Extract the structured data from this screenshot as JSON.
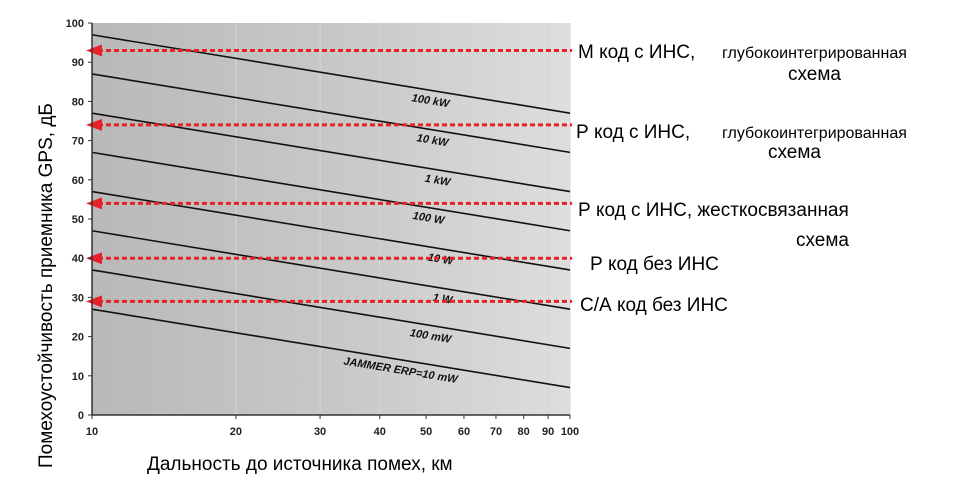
{
  "chart_data": {
    "type": "line",
    "xlabel": "Дальность до источника помех, км",
    "ylabel": "Помехоустойчивость приемника GPS, дБ",
    "x_scale": "log",
    "xlim": [
      10,
      100
    ],
    "ylim": [
      0,
      100
    ],
    "x_ticks": [
      10,
      20,
      30,
      40,
      50,
      60,
      70,
      80,
      90,
      100
    ],
    "x_tick_labels": [
      "10",
      "20",
      "30",
      "40",
      "50",
      "60",
      "70",
      "80",
      "90",
      "100"
    ],
    "y_ticks": [
      0,
      10,
      20,
      30,
      40,
      50,
      60,
      70,
      80,
      90,
      100
    ],
    "y_tick_labels": [
      "0",
      "10",
      "20",
      "30",
      "40",
      "50",
      "60",
      "70",
      "80",
      "90",
      "100"
    ],
    "grid": true,
    "series": [
      {
        "name": "100 kW",
        "x": [
          10,
          100
        ],
        "y": [
          97,
          77
        ]
      },
      {
        "name": "10 kW",
        "x": [
          10,
          100
        ],
        "y": [
          87,
          67
        ]
      },
      {
        "name": "1 kW",
        "x": [
          10,
          100
        ],
        "y": [
          77,
          57
        ]
      },
      {
        "name": "100 W",
        "x": [
          10,
          100
        ],
        "y": [
          67,
          47
        ]
      },
      {
        "name": "10 W",
        "x": [
          10,
          100
        ],
        "y": [
          57,
          37
        ]
      },
      {
        "name": "1 W",
        "x": [
          10,
          100
        ],
        "y": [
          47,
          27
        ]
      },
      {
        "name": "100 mW",
        "x": [
          10,
          100
        ],
        "y": [
          37,
          17
        ]
      },
      {
        "name": "JAMMER ERP=10 mW",
        "x": [
          10,
          100
        ],
        "y": [
          27,
          7
        ]
      }
    ],
    "thresholds": [
      {
        "y": 93,
        "label_line1": "М код с ИНС,",
        "label_line1b": "глубокоинтегрированная",
        "label_line2": "схема"
      },
      {
        "y": 74,
        "label_line1": "Р код с ИНС,",
        "label_line1b": "глубокоинтегрированная",
        "label_line2": "схема"
      },
      {
        "y": 54,
        "label_line1": "Р код с ИНС, жесткосвязанная",
        "label_line1b": "",
        "label_line2": "схема"
      },
      {
        "y": 40,
        "label_line1": "Р код без ИНС",
        "label_line1b": "",
        "label_line2": ""
      },
      {
        "y": 29,
        "label_line1": "С/А код без ИНС",
        "label_line1b": "",
        "label_line2": ""
      }
    ],
    "threshold_color": "#e8202a"
  }
}
